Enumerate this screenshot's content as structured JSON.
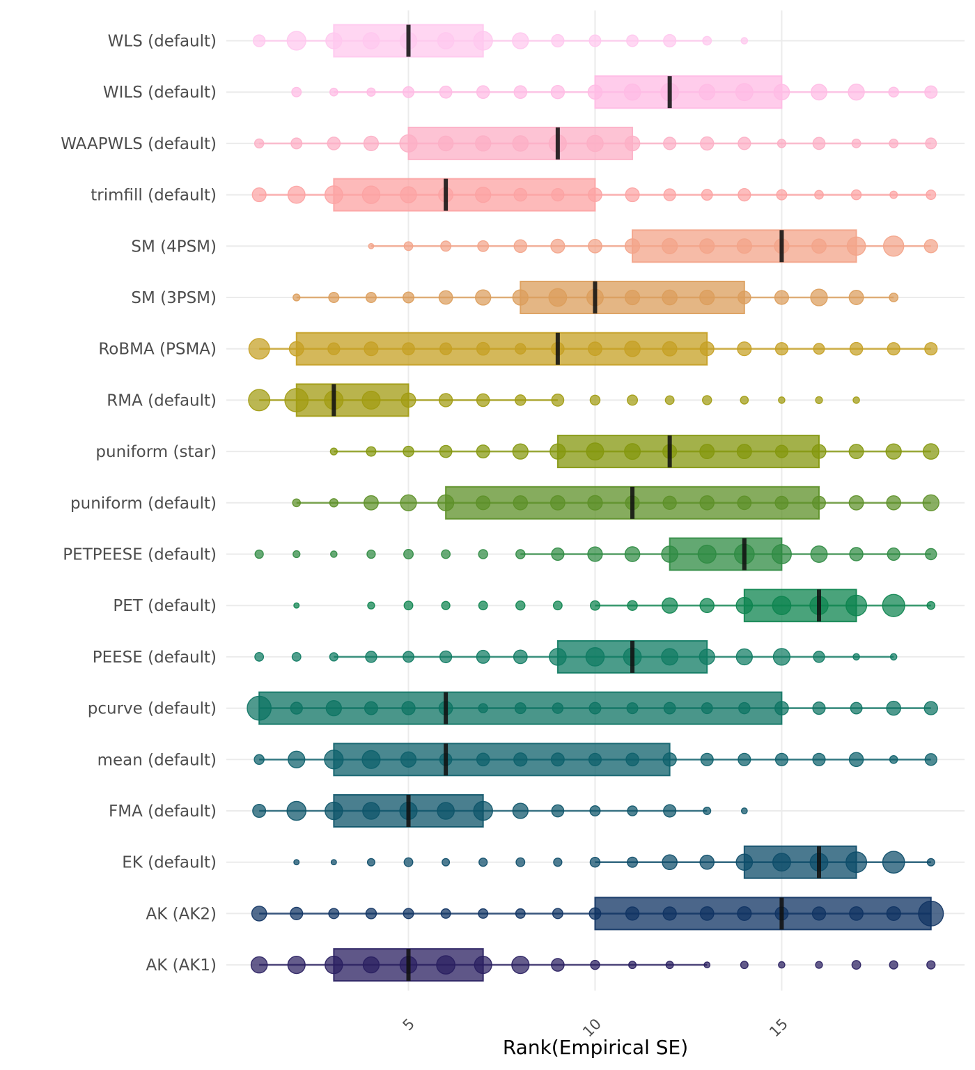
{
  "chart_data": {
    "type": "scatter",
    "subtype": "dot-frequency with interval box and median",
    "title": "",
    "xlabel": "Rank(Empirical SE)",
    "ylabel": "",
    "xlim": [
      0.12,
      19.9
    ],
    "x_ticks": [
      5,
      10,
      15
    ],
    "x_tick_labels": [
      "5",
      "10",
      "15"
    ],
    "x_tick_label_angle": 45,
    "grid": true,
    "legend": "none",
    "series": [
      {
        "name": "WLS (default)",
        "color": "#FFC8EE",
        "box": {
          "q1": 3,
          "median": 5,
          "q3": 7
        },
        "whisker": [
          1,
          13
        ],
        "ranks": [
          1,
          2,
          3,
          4,
          5,
          6,
          7,
          8,
          9,
          10,
          11,
          12,
          13,
          14
        ],
        "counts": [
          21,
          50,
          37,
          38,
          40,
          38,
          50,
          37,
          23,
          20,
          20,
          23,
          12,
          7
        ]
      },
      {
        "name": "WILS (default)",
        "color": "#FFBBE4",
        "box": {
          "q1": 10,
          "median": 12,
          "q3": 15
        },
        "whisker": [
          3,
          19
        ],
        "ranks": [
          2,
          3,
          4,
          5,
          6,
          7,
          8,
          9,
          10,
          11,
          12,
          13,
          14,
          15,
          16,
          17,
          18,
          19
        ],
        "counts": [
          14,
          10,
          11,
          18,
          22,
          24,
          24,
          26,
          29,
          38,
          45,
          35,
          42,
          35,
          36,
          37,
          15,
          23
        ]
      },
      {
        "name": "WAAPWLS (default)",
        "color": "#FCAFC5",
        "box": {
          "q1": 5,
          "median": 9,
          "q3": 11
        },
        "whisker": [
          1,
          19
        ],
        "ranks": [
          1,
          2,
          3,
          4,
          5,
          6,
          7,
          8,
          9,
          10,
          11,
          12,
          13,
          14,
          15,
          16,
          17,
          18,
          19
        ],
        "counts": [
          13,
          18,
          24,
          31,
          43,
          32,
          34,
          35,
          43,
          38,
          32,
          23,
          26,
          23,
          11,
          22,
          12,
          12,
          18
        ]
      },
      {
        "name": "trimfill (default)",
        "color": "#FCA3A3",
        "box": {
          "q1": 3,
          "median": 6,
          "q3": 10
        },
        "whisker": [
          1,
          19
        ],
        "ranks": [
          1,
          2,
          3,
          4,
          5,
          6,
          7,
          8,
          9,
          10,
          11,
          12,
          13,
          14,
          15,
          16,
          17,
          18,
          19
        ],
        "counts": [
          28,
          42,
          45,
          44,
          37,
          30,
          34,
          24,
          23,
          27,
          28,
          21,
          18,
          23,
          16,
          12,
          15,
          9,
          14
        ]
      },
      {
        "name": "SM (4PSM)",
        "color": "#F3A489",
        "box": {
          "q1": 11,
          "median": 15,
          "q3": 17
        },
        "whisker": [
          4,
          19
        ],
        "ranks": [
          4,
          5,
          6,
          7,
          8,
          9,
          10,
          11,
          12,
          13,
          14,
          15,
          16,
          17,
          18,
          19
        ],
        "counts": [
          5,
          12,
          16,
          18,
          24,
          28,
          27,
          31,
          34,
          31,
          31,
          31,
          30,
          48,
          58,
          26
        ]
      },
      {
        "name": "SM (3PSM)",
        "color": "#DB9D5B",
        "box": {
          "q1": 8,
          "median": 10,
          "q3": 14
        },
        "whisker": [
          2,
          18
        ],
        "ranks": [
          2,
          3,
          4,
          5,
          6,
          7,
          8,
          9,
          10,
          11,
          12,
          13,
          14,
          15,
          16,
          17,
          18
        ],
        "counts": [
          8,
          16,
          16,
          18,
          27,
          34,
          34,
          45,
          39,
          31,
          32,
          31,
          24,
          28,
          40,
          30,
          12
        ]
      },
      {
        "name": "RoBMA (PSMA)",
        "color": "#C5A023",
        "box": {
          "q1": 2,
          "median": 9,
          "q3": 13
        },
        "whisker": [
          1,
          19
        ],
        "ranks": [
          1,
          2,
          3,
          4,
          5,
          6,
          7,
          8,
          9,
          10,
          11,
          12,
          13,
          14,
          15,
          16,
          17,
          18,
          19
        ],
        "counts": [
          60,
          30,
          21,
          28,
          22,
          21,
          24,
          17,
          24,
          27,
          35,
          30,
          28,
          28,
          23,
          18,
          24,
          23,
          23
        ]
      },
      {
        "name": "RMA (default)",
        "color": "#A19B11",
        "box": {
          "q1": 2,
          "median": 3,
          "q3": 5
        },
        "whisker": [
          1,
          9
        ],
        "ranks": [
          1,
          2,
          3,
          4,
          5,
          6,
          7,
          8,
          9,
          10,
          11,
          12,
          13,
          14,
          15,
          16,
          17
        ],
        "counts": [
          64,
          76,
          49,
          46,
          30,
          26,
          24,
          17,
          22,
          15,
          16,
          12,
          13,
          10,
          7,
          8,
          7
        ]
      },
      {
        "name": "puniform (star)",
        "color": "#84970D",
        "box": {
          "q1": 9,
          "median": 12,
          "q3": 16
        },
        "whisker": [
          3,
          19
        ],
        "ranks": [
          3,
          4,
          5,
          6,
          7,
          8,
          9,
          10,
          11,
          12,
          13,
          14,
          15,
          16,
          17,
          18,
          19
        ],
        "counts": [
          8,
          14,
          17,
          22,
          25,
          34,
          34,
          42,
          36,
          28,
          30,
          30,
          23,
          28,
          30,
          34,
          35
        ]
      },
      {
        "name": "puniform (default)",
        "color": "#5D9028",
        "box": {
          "q1": 6,
          "median": 11,
          "q3": 16
        },
        "whisker": [
          2,
          19
        ],
        "ranks": [
          2,
          3,
          4,
          5,
          6,
          7,
          8,
          9,
          10,
          11,
          12,
          13,
          14,
          15,
          16,
          17,
          18,
          19
        ],
        "counts": [
          10,
          11,
          30,
          37,
          37,
          28,
          29,
          30,
          31,
          28,
          26,
          29,
          27,
          25,
          25,
          30,
          29,
          37
        ]
      },
      {
        "name": "PETPEESE (default)",
        "color": "#2F8B43",
        "box": {
          "q1": 12,
          "median": 14,
          "q3": 15
        },
        "whisker": [
          8,
          19
        ],
        "ranks": [
          1,
          2,
          3,
          4,
          5,
          6,
          7,
          8,
          9,
          10,
          11,
          12,
          13,
          14,
          15,
          16,
          17,
          18,
          19
        ],
        "counts": [
          11,
          8,
          7,
          11,
          14,
          12,
          13,
          13,
          23,
          31,
          32,
          38,
          46,
          55,
          53,
          39,
          26,
          23,
          19
        ]
      },
      {
        "name": "PET (default)",
        "color": "#0D844F",
        "box": {
          "q1": 14,
          "median": 16,
          "q3": 17
        },
        "whisker": [
          10,
          19
        ],
        "ranks": [
          2,
          4,
          5,
          6,
          7,
          8,
          9,
          10,
          11,
          12,
          13,
          14,
          15,
          16,
          17,
          18,
          19
        ],
        "counts": [
          5,
          8,
          12,
          11,
          12,
          13,
          12,
          14,
          15,
          34,
          29,
          38,
          48,
          47,
          60,
          69,
          10
        ]
      },
      {
        "name": "PEESE (default)",
        "color": "#0F7B63",
        "box": {
          "q1": 9,
          "median": 11,
          "q3": 13
        },
        "whisker": [
          3,
          18
        ],
        "ranks": [
          1,
          2,
          3,
          4,
          5,
          6,
          7,
          8,
          9,
          10,
          11,
          12,
          13,
          14,
          15,
          16,
          17,
          18
        ],
        "counts": [
          12,
          12,
          11,
          19,
          18,
          21,
          25,
          27,
          41,
          48,
          45,
          39,
          34,
          37,
          40,
          19,
          7,
          7
        ]
      },
      {
        "name": "pcurve (default)",
        "color": "#0D7363",
        "box": {
          "q1": 1,
          "median": 6,
          "q3": 15
        },
        "whisker": [
          1,
          19
        ],
        "ranks": [
          1,
          2,
          3,
          4,
          5,
          6,
          7,
          8,
          9,
          10,
          11,
          12,
          13,
          14,
          15,
          16,
          17,
          18,
          19
        ],
        "counts": [
          80,
          21,
          34,
          25,
          26,
          27,
          13,
          18,
          17,
          20,
          18,
          20,
          18,
          19,
          27,
          23,
          20,
          29,
          26
        ]
      },
      {
        "name": "mean (default)",
        "color": "#0D606B",
        "box": {
          "q1": 3,
          "median": 6,
          "q3": 12
        },
        "whisker": [
          1,
          19
        ],
        "ranks": [
          1,
          2,
          3,
          4,
          5,
          6,
          7,
          8,
          9,
          10,
          11,
          12,
          13,
          14,
          15,
          16,
          17,
          18,
          19
        ],
        "counts": [
          15,
          40,
          50,
          46,
          34,
          22,
          24,
          26,
          25,
          23,
          24,
          26,
          23,
          23,
          23,
          23,
          29,
          10,
          21
        ]
      },
      {
        "name": "FMA (default)",
        "color": "#0D5469",
        "box": {
          "q1": 3,
          "median": 5,
          "q3": 7
        },
        "whisker": [
          1,
          13
        ],
        "ranks": [
          1,
          2,
          3,
          4,
          5,
          6,
          7,
          8,
          9,
          10,
          11,
          12,
          13,
          14
        ],
        "counts": [
          25,
          51,
          44,
          41,
          43,
          41,
          51,
          34,
          22,
          16,
          15,
          23,
          9,
          6
        ]
      },
      {
        "name": "EK (default)",
        "color": "#0D4C69",
        "box": {
          "q1": 14,
          "median": 16,
          "q3": 17
        },
        "whisker": [
          10,
          19
        ],
        "ranks": [
          2,
          3,
          4,
          5,
          6,
          7,
          8,
          9,
          10,
          11,
          12,
          13,
          14,
          15,
          16,
          17,
          18,
          19
        ],
        "counts": [
          5,
          5,
          9,
          12,
          9,
          11,
          12,
          11,
          15,
          16,
          32,
          29,
          38,
          45,
          45,
          60,
          67,
          9
        ]
      },
      {
        "name": "AK (AK2)",
        "color": "#0F3363",
        "box": {
          "q1": 10,
          "median": 15,
          "q3": 19
        },
        "whisker": [
          1,
          19
        ],
        "ranks": [
          1,
          2,
          3,
          4,
          5,
          6,
          7,
          8,
          9,
          10,
          11,
          12,
          13,
          14,
          15,
          16,
          17,
          18,
          19
        ],
        "counts": [
          32,
          23,
          16,
          17,
          16,
          14,
          14,
          14,
          16,
          20,
          26,
          26,
          27,
          28,
          25,
          26,
          27,
          28,
          86
        ]
      },
      {
        "name": "AK (AK1)",
        "color": "#291F60",
        "box": {
          "q1": 3,
          "median": 5,
          "q3": 7
        },
        "whisker": [
          1,
          13
        ],
        "ranks": [
          1,
          2,
          3,
          4,
          5,
          6,
          7,
          8,
          9,
          10,
          11,
          12,
          13,
          14,
          15,
          16,
          17,
          18,
          19
        ],
        "counts": [
          38,
          43,
          44,
          37,
          41,
          48,
          43,
          43,
          24,
          13,
          9,
          9,
          6,
          9,
          7,
          8,
          12,
          11,
          11
        ]
      }
    ]
  }
}
